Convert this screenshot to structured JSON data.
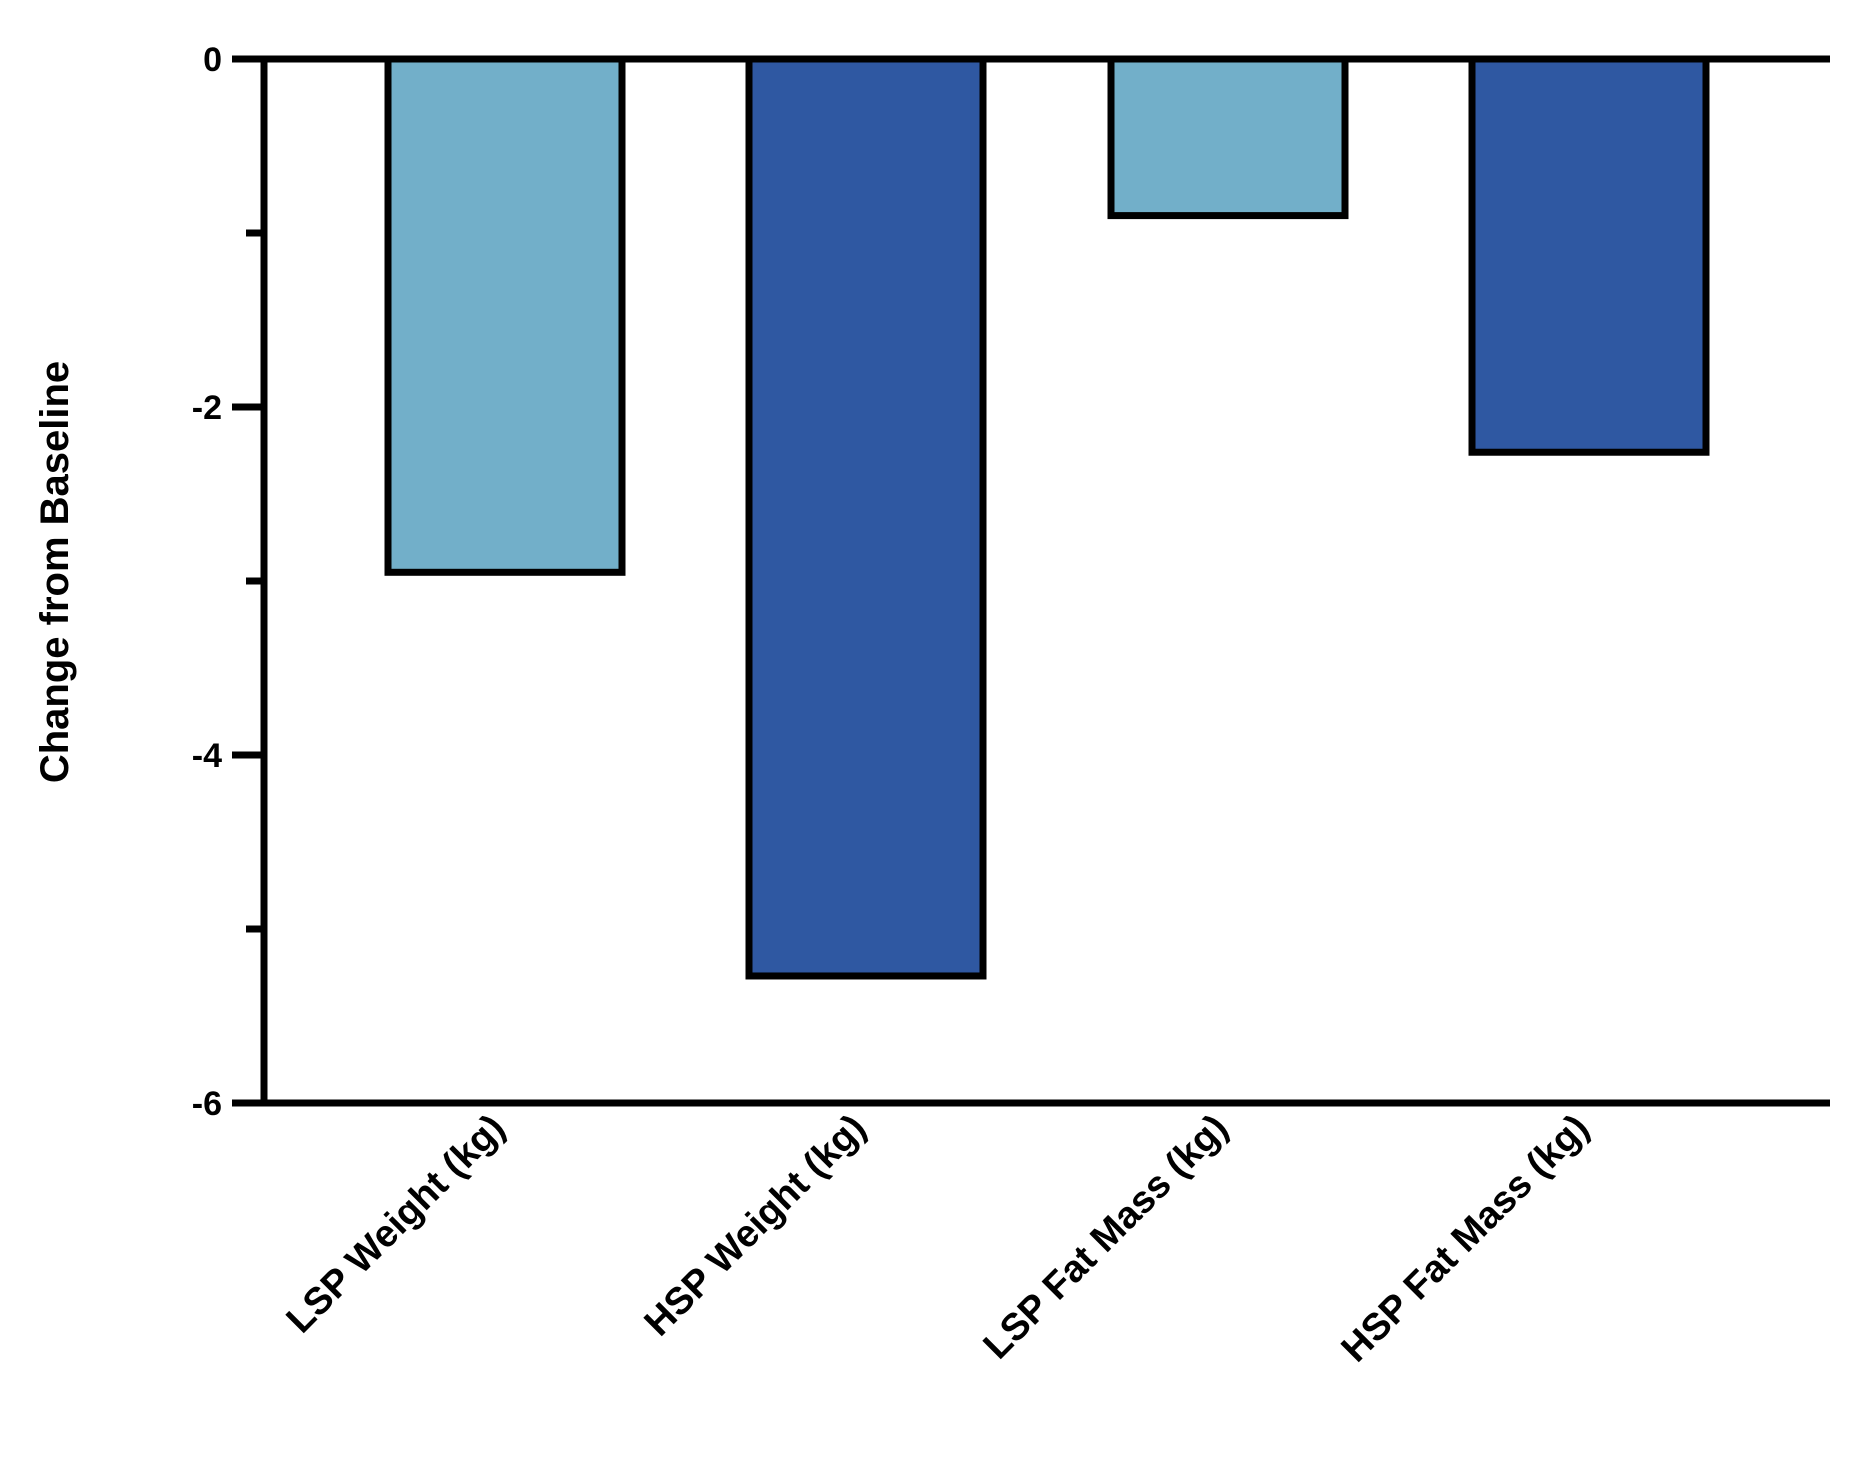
{
  "chart_data": {
    "type": "bar",
    "title": "",
    "xlabel": "",
    "ylabel": "Change from Baseline",
    "categories": [
      "LSP Weight (kg)",
      "HSP Weight (kg)",
      "LSP Fat Mass (kg)",
      "HSP Fat Mass (kg)"
    ],
    "values": [
      -2.95,
      -5.27,
      -0.9,
      -2.26
    ],
    "bar_colors": [
      "#72AFC9",
      "#2F58A2",
      "#72AFC9",
      "#2F58A2"
    ],
    "ylim": [
      -6,
      0
    ],
    "y_ticks": [
      0,
      -2,
      -4,
      -6
    ],
    "y_tick_labels": [
      "0",
      "-2",
      "-4",
      "-6"
    ],
    "y_minor_ticks": [
      -1,
      -3,
      -5
    ],
    "grid": false,
    "legend": "none"
  }
}
